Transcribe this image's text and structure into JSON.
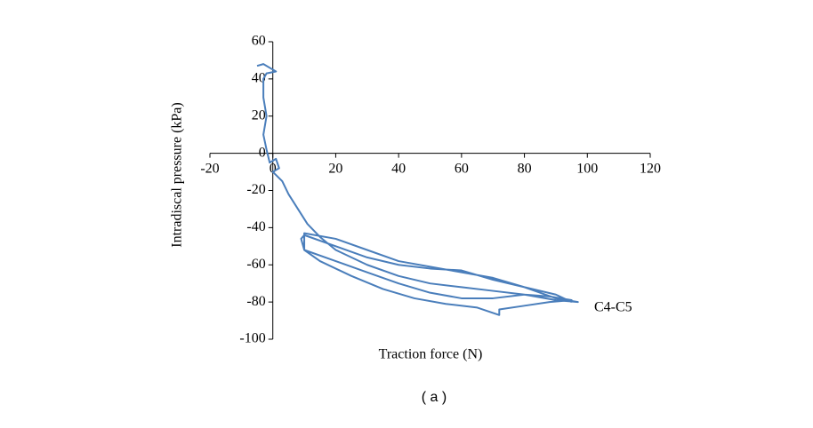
{
  "chart_data": {
    "type": "line",
    "x_label": "Traction force (N)",
    "y_label": "Intradiscal pressure (kPa)",
    "annotation": "C4-C5",
    "caption": "( a )",
    "x": [
      -5,
      -3,
      -1,
      1,
      -2,
      -3,
      -3,
      -2,
      -3,
      -2,
      -1,
      1,
      2,
      0,
      3,
      5,
      8,
      11,
      15,
      20,
      30,
      40,
      50,
      60,
      70,
      80,
      90,
      97,
      90,
      80,
      70,
      60,
      50,
      40,
      30,
      20,
      10,
      9,
      10,
      20,
      30,
      40,
      50,
      60,
      70,
      80,
      88,
      95,
      88,
      80,
      72,
      72,
      65,
      55,
      45,
      35,
      25,
      15,
      10,
      10,
      20,
      30,
      40,
      50,
      60,
      70,
      80,
      90,
      95
    ],
    "series": [
      {
        "name": "C4-C5",
        "color": "#4a7ebb",
        "values": [
          47,
          48,
          46,
          44,
          43,
          40,
          30,
          20,
          10,
          2,
          -5,
          -3,
          -8,
          -10,
          -15,
          -22,
          -30,
          -38,
          -45,
          -52,
          -60,
          -66,
          -70,
          -72,
          -74,
          -76,
          -79,
          -80,
          -78,
          -72,
          -68,
          -63,
          -62,
          -60,
          -56,
          -50,
          -44,
          -46,
          -52,
          -58,
          -64,
          -70,
          -75,
          -78,
          -78,
          -76,
          -77,
          -79,
          -80,
          -82,
          -84,
          -87,
          -83,
          -81,
          -78,
          -73,
          -66,
          -58,
          -52,
          -43,
          -46,
          -52,
          -58,
          -61,
          -64,
          -67,
          -72,
          -76,
          -80
        ]
      }
    ],
    "xlim": [
      -20,
      120
    ],
    "xticks": [
      -20,
      0,
      20,
      40,
      60,
      80,
      100,
      120
    ],
    "ylim": [
      -100,
      60
    ],
    "yticks": [
      -100,
      -80,
      -60,
      -40,
      -20,
      0,
      20,
      40,
      60
    ]
  }
}
